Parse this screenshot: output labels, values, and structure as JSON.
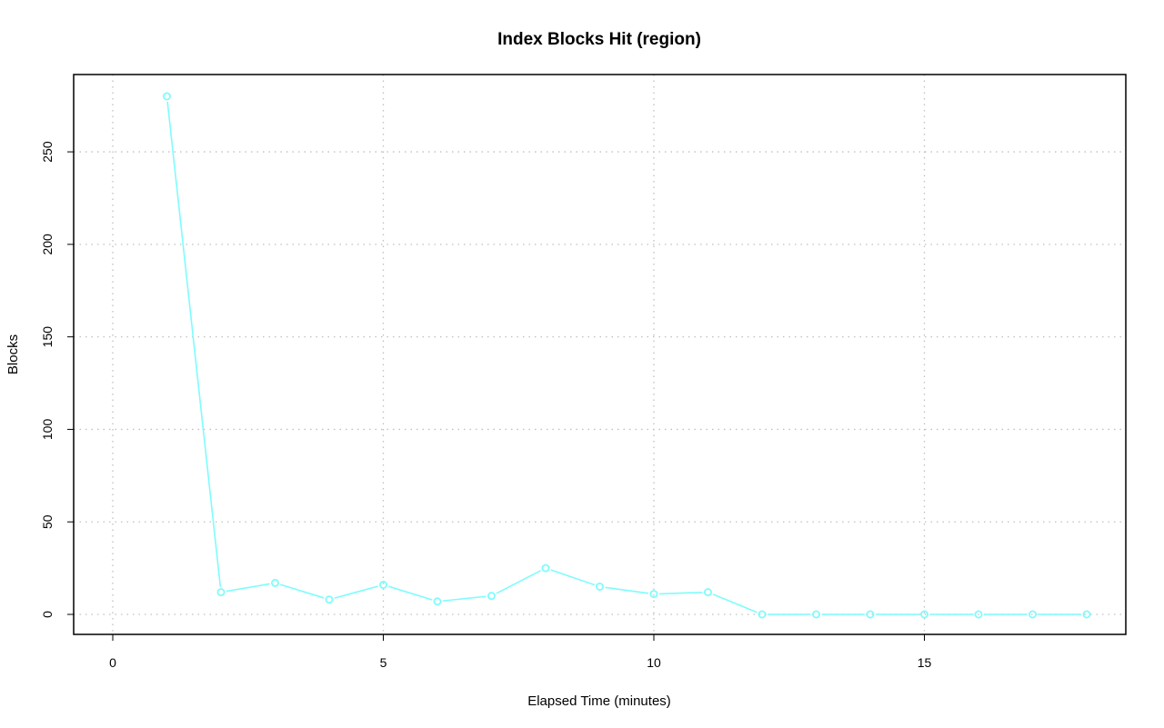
{
  "chart_data": {
    "type": "line",
    "title": "Index Blocks Hit (region)",
    "xlabel": "Elapsed Time (minutes)",
    "ylabel": "Blocks",
    "xlim": [
      0,
      18
    ],
    "ylim": [
      0,
      280
    ],
    "x_ticks": [
      0,
      5,
      10,
      15
    ],
    "y_ticks": [
      0,
      50,
      100,
      150,
      200,
      250
    ],
    "grid": true,
    "series": [
      {
        "color": "#7ffcfc",
        "markers": "open-circle",
        "x": [
          1,
          2,
          3,
          4,
          5,
          6,
          7,
          8,
          9,
          10,
          11,
          12,
          13,
          14,
          15,
          16,
          17,
          18
        ],
        "values": [
          280,
          12,
          17,
          8,
          16,
          7,
          10,
          25,
          15,
          11,
          12,
          0,
          0,
          0,
          0,
          0,
          0,
          0
        ]
      }
    ]
  }
}
